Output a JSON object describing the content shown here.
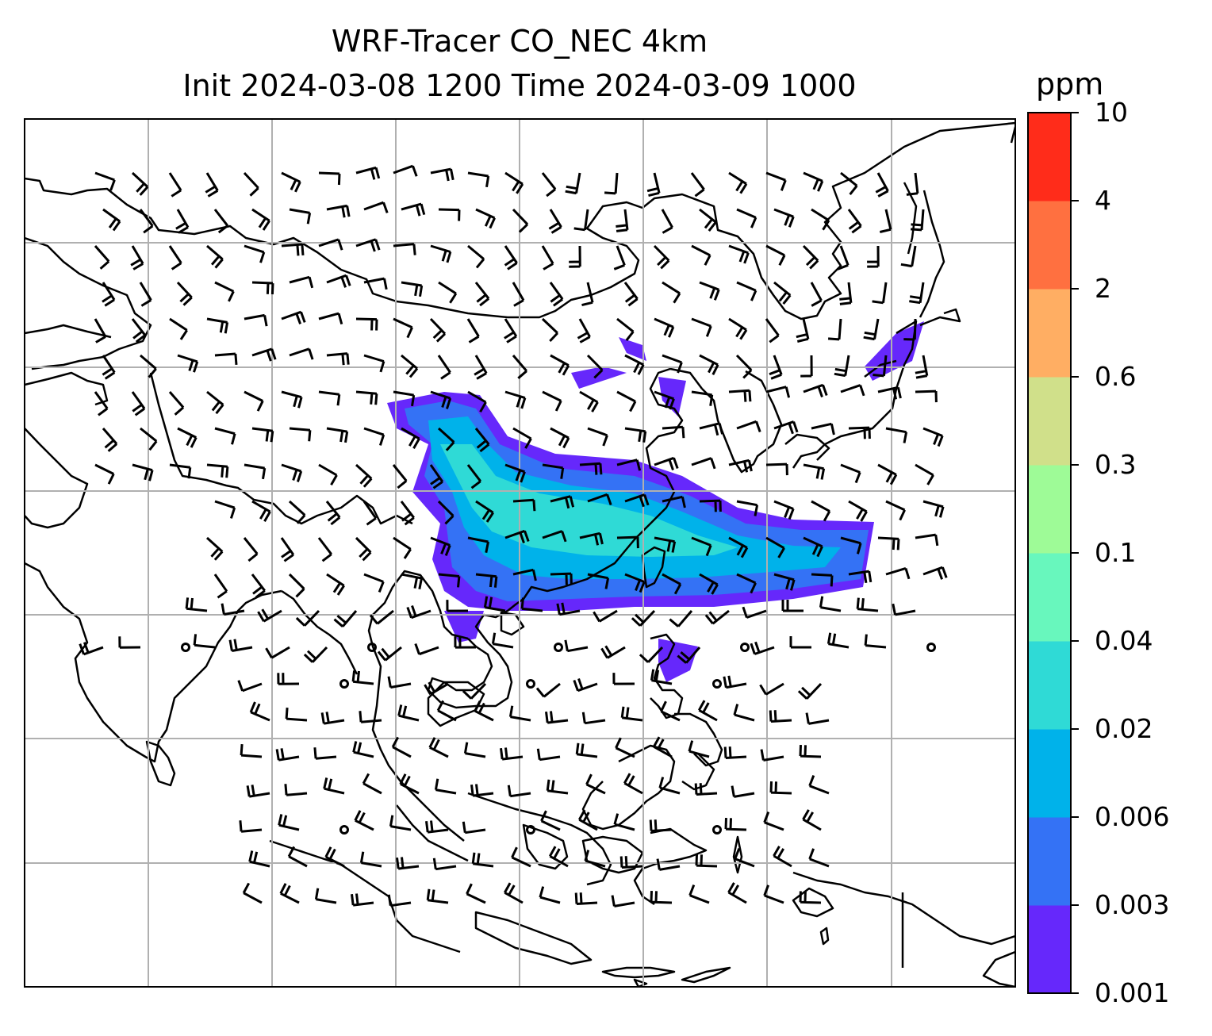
{
  "chart_data": {
    "type": "heatmap",
    "title": "WRF-Tracer CO_NEC 4km",
    "subtitle": "Init 2024-03-08 1200 Time 2024-03-09 1000",
    "colorbar": {
      "units": "ppm",
      "levels": [
        "0.001",
        "0.003",
        "0.006",
        "0.02",
        "0.04",
        "0.1",
        "0.3",
        "0.6",
        "2",
        "4",
        "10"
      ],
      "colors": [
        "#6628fb",
        "#3472f5",
        "#00b2ea",
        "#2fdad6",
        "#68f7bd",
        "#9efb97",
        "#d0e08a",
        "#ffae63",
        "#ff7040",
        "#ff2c1a"
      ]
    },
    "grid": true,
    "overlays": [
      "coastlines",
      "wind-barbs"
    ]
  }
}
